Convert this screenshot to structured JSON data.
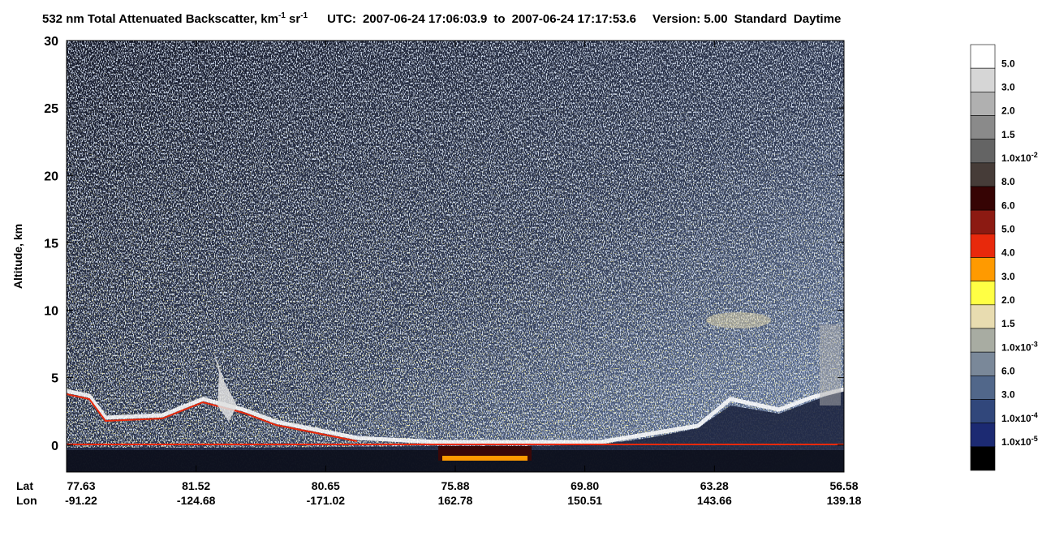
{
  "chart_data": {
    "type": "heatmap",
    "title": {
      "text": "532 nm Total Attenuated Backscatter, km",
      "sup1": "-1",
      "mid": " sr",
      "sup2": "-1"
    },
    "utc_label": "UTC:",
    "start": "2007-06-24 17:06:03.9",
    "to": "to",
    "end": "2007-06-24 17:17:53.6",
    "version": "Version: 5.00",
    "mode": "Standard  Daytime",
    "ylabel": "Altitude, km",
    "ylim": [
      -2,
      30
    ],
    "yticks": [
      0,
      5,
      10,
      15,
      20,
      25,
      30
    ],
    "x_row_labels": [
      "Lat",
      "Lon"
    ],
    "lat": [
      "77.63",
      "81.52",
      "80.65",
      "75.88",
      "69.80",
      "63.28",
      "56.58"
    ],
    "lon": [
      "-91.22",
      "-124.68",
      "-171.02",
      "162.78",
      "150.51",
      "143.66",
      "139.18"
    ],
    "colorbar": {
      "colors": [
        "#ffffff",
        "#d6d6d6",
        "#b0b0b0",
        "#8a8a8a",
        "#646464",
        "#463c38",
        "#360404",
        "#8c1a12",
        "#e8290c",
        "#ff9a00",
        "#ffff44",
        "#e8dcb0",
        "#a8aca2",
        "#7a8899",
        "#51678a",
        "#31477b",
        "#1c2a72",
        "#000000"
      ],
      "labels": [
        {
          "text": "5.0"
        },
        {
          "text": "3.0"
        },
        {
          "text": "2.0"
        },
        {
          "text": "1.5"
        },
        {
          "text": "1.0x10",
          "sup": "-2"
        },
        {
          "text": "8.0"
        },
        {
          "text": "6.0"
        },
        {
          "text": "5.0"
        },
        {
          "text": "4.0"
        },
        {
          "text": "3.0"
        },
        {
          "text": "2.0"
        },
        {
          "text": "1.5"
        },
        {
          "text": "1.0x10",
          "sup": "-3"
        },
        {
          "text": "6.0"
        },
        {
          "text": "3.0"
        },
        {
          "text": "1.0x10",
          "sup": "-4"
        },
        {
          "text": "1.0x10",
          "sup": "-5"
        }
      ]
    }
  }
}
